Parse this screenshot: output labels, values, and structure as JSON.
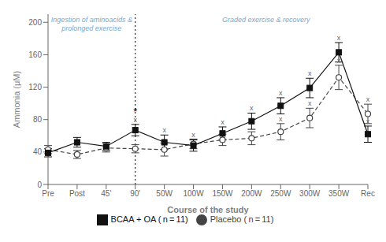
{
  "chart_data": {
    "type": "line",
    "xlabel": "Course of the study",
    "ylabel": "Ammonia (μM)",
    "categories": [
      "Pre",
      "Post",
      "45'",
      "90'",
      "50W",
      "100W",
      "150W",
      "200W",
      "250W",
      "300W",
      "350W",
      "Rec"
    ],
    "series": [
      {
        "name": "Placebo ( n = 11)",
        "color": "#444444",
        "marker": "circle",
        "line_style": "dashed",
        "values": [
          43,
          37,
          45,
          44,
          43,
          50,
          55,
          57,
          65,
          82,
          132,
          87
        ],
        "errors": [
          5,
          5,
          5,
          5,
          8,
          6,
          7,
          8,
          10,
          12,
          15,
          12
        ]
      },
      {
        "name": "BCAA + OA ( n = 11)",
        "color": "#111111",
        "marker": "square",
        "line_style": "solid",
        "values": [
          39,
          52,
          47,
          67,
          52,
          48,
          63,
          78,
          97,
          119,
          163,
          62
        ],
        "errors": [
          5,
          6,
          5,
          7,
          9,
          7,
          8,
          10,
          10,
          12,
          12,
          10
        ]
      }
    ],
    "ylim": [
      0,
      210
    ],
    "yticks": [
      0,
      40,
      80,
      120,
      160,
      200
    ],
    "grid": false,
    "legend": "bottom",
    "annotations": [
      {
        "text": "Ingestion of aminoacids &\nprolonged exercise",
        "color": "#7ba7c9",
        "from": "Pre",
        "to": "90'"
      },
      {
        "text": "Graded exercise & recovery",
        "color": "#7ba7c9",
        "from": "50W",
        "to": "Rec"
      }
    ],
    "point_marks": [
      {
        "series": "Placebo ( n = 11)",
        "text": "x",
        "color": "#666666",
        "categories": [
          "250W",
          "300W",
          "350W",
          "Rec"
        ]
      },
      {
        "series": "BCAA + OA ( n = 11)",
        "text": "x",
        "color": "#666666",
        "categories": [
          "90'",
          "50W",
          "100W",
          "150W",
          "200W",
          "250W",
          "300W",
          "350W",
          "Rec"
        ]
      },
      {
        "series": "BCAA + OA ( n = 11)",
        "text": "*",
        "color": "#000000",
        "categories": [
          "90'"
        ]
      }
    ],
    "divider_after": "90'"
  }
}
